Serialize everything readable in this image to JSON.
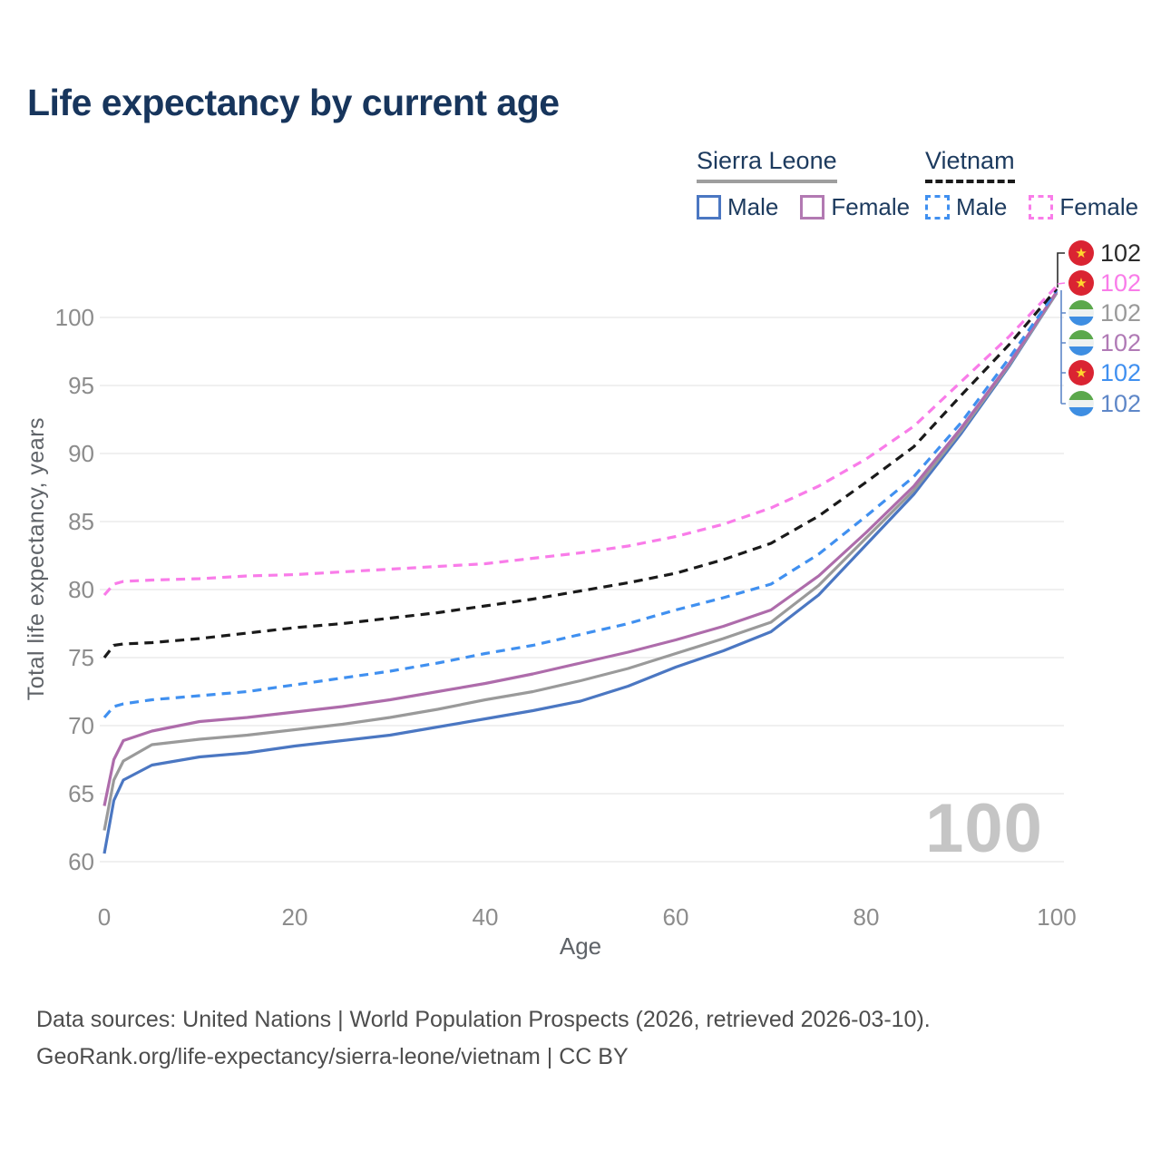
{
  "page": {
    "title": "Life expectancy by current age"
  },
  "legend": {
    "groups": [
      {
        "country": "Sierra Leone",
        "line_style": "solid",
        "line_color": "#9e9e9e",
        "items": [
          {
            "label": "Male",
            "color": "#4b77c2",
            "dashed": false
          },
          {
            "label": "Female",
            "color": "#b279b2",
            "dashed": false
          }
        ]
      },
      {
        "country": "Vietnam",
        "line_style": "dashed",
        "line_color": "#1a1a1a",
        "items": [
          {
            "label": "Male",
            "color": "#4090f0",
            "dashed": true
          },
          {
            "label": "Female",
            "color": "#f97ce9",
            "dashed": true
          }
        ]
      }
    ]
  },
  "chart_data": {
    "type": "line",
    "title": "Life expectancy by current age",
    "xlabel": "Age",
    "ylabel": "Total life expectancy, years",
    "xlim": [
      0,
      100
    ],
    "ylim": [
      58.5,
      103
    ],
    "xticks": [
      0,
      20,
      40,
      60,
      80,
      100
    ],
    "yticks": [
      60,
      65,
      70,
      75,
      80,
      85,
      90,
      95,
      100
    ],
    "grid": true,
    "legend_position": "top-right",
    "age_indicator": "100",
    "x": [
      0,
      1,
      2,
      5,
      10,
      15,
      20,
      25,
      30,
      35,
      40,
      45,
      50,
      55,
      60,
      65,
      70,
      75,
      80,
      85,
      90,
      95,
      100
    ],
    "series": [
      {
        "name": "Vietnam Female",
        "country": "Vietnam",
        "sex": "Female",
        "color": "#f97ce9",
        "dashed": true,
        "values": [
          79.6,
          80.4,
          80.6,
          80.7,
          80.8,
          81.0,
          81.1,
          81.3,
          81.5,
          81.7,
          81.9,
          82.3,
          82.7,
          83.2,
          83.9,
          84.8,
          86.0,
          87.6,
          89.6,
          92.0,
          95.3,
          98.6,
          102.3
        ]
      },
      {
        "name": "Vietnam Both sexes",
        "country": "Vietnam",
        "sex": "Both",
        "color": "#1a1a1a",
        "dashed": true,
        "values": [
          75.0,
          75.9,
          76.0,
          76.1,
          76.4,
          76.8,
          77.2,
          77.5,
          77.9,
          78.3,
          78.8,
          79.3,
          79.9,
          80.5,
          81.2,
          82.2,
          83.4,
          85.4,
          87.9,
          90.5,
          94.3,
          98.0,
          102.1
        ]
      },
      {
        "name": "Vietnam Male",
        "country": "Vietnam",
        "sex": "Male",
        "color": "#4090f0",
        "dashed": true,
        "values": [
          70.6,
          71.4,
          71.6,
          71.9,
          72.2,
          72.5,
          73.0,
          73.5,
          74.0,
          74.6,
          75.3,
          75.9,
          76.7,
          77.5,
          78.5,
          79.4,
          80.4,
          82.6,
          85.4,
          88.3,
          92.3,
          97.0,
          102.0
        ]
      },
      {
        "name": "Sierra Leone Female",
        "country": "Sierra Leone",
        "sex": "Female",
        "color": "#ae6cab",
        "dashed": false,
        "values": [
          64.1,
          67.5,
          68.9,
          69.6,
          70.3,
          70.6,
          71.0,
          71.4,
          71.9,
          72.5,
          73.1,
          73.8,
          74.6,
          75.4,
          76.3,
          77.3,
          78.5,
          81.0,
          84.2,
          87.6,
          91.9,
          96.6,
          101.9
        ]
      },
      {
        "name": "Sierra Leone Both sexes",
        "country": "Sierra Leone",
        "sex": "Both",
        "color": "#9a9a9a",
        "dashed": false,
        "values": [
          62.3,
          66.0,
          67.4,
          68.6,
          69.0,
          69.3,
          69.7,
          70.1,
          70.6,
          71.2,
          71.9,
          72.5,
          73.3,
          74.2,
          75.3,
          76.4,
          77.6,
          80.3,
          83.8,
          87.3,
          91.7,
          96.5,
          101.8
        ]
      },
      {
        "name": "Sierra Leone Male",
        "country": "Sierra Leone",
        "sex": "Male",
        "color": "#4b77c2",
        "dashed": false,
        "values": [
          60.6,
          64.5,
          66.0,
          67.1,
          67.7,
          68.0,
          68.5,
          68.9,
          69.3,
          69.9,
          70.5,
          71.1,
          71.8,
          72.9,
          74.3,
          75.5,
          76.9,
          79.6,
          83.3,
          87.0,
          91.5,
          96.4,
          101.8
        ]
      }
    ],
    "end_labels": [
      {
        "flag": "vietnam",
        "value": "102",
        "color": "#2b2b2b"
      },
      {
        "flag": "vietnam",
        "value": "102",
        "color": "#f97ce9"
      },
      {
        "flag": "sierra-leone",
        "value": "102",
        "color": "#9a9a9a"
      },
      {
        "flag": "sierra-leone",
        "value": "102",
        "color": "#b07ab5"
      },
      {
        "flag": "vietnam",
        "value": "102",
        "color": "#4090f0"
      },
      {
        "flag": "sierra-leone",
        "value": "102",
        "color": "#5e87c8"
      }
    ]
  },
  "footer": {
    "line1": "Data sources: United Nations | World Population Prospects (2026, retrieved 2026-03-10).",
    "line2": "GeoRank.org/life-expectancy/sierra-leone/vietnam | CC BY"
  }
}
